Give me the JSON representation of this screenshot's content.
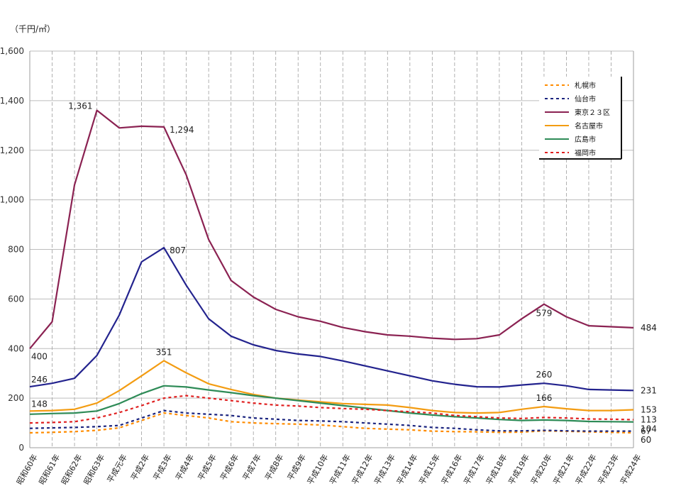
{
  "chart_data": {
    "type": "line",
    "unit_label": "（千円/㎡）",
    "ylim": [
      0,
      1600
    ],
    "yticks": [
      "0",
      "200",
      "400",
      "600",
      "800",
      "1,000",
      "1,200",
      "1,400",
      "1,600"
    ],
    "ytick_values": [
      0,
      200,
      400,
      600,
      800,
      1000,
      1200,
      1400,
      1600
    ],
    "grid": {
      "horizontal": true,
      "vertical": true,
      "vertical_style": "dashed"
    },
    "legend_position": "top-right",
    "categories": [
      "昭和60年",
      "昭和61年",
      "昭和62年",
      "昭和63年",
      "平成元年",
      "平成2年",
      "平成3年",
      "平成4年",
      "平成5年",
      "平成6年",
      "平成7年",
      "平成8年",
      "平成9年",
      "平成10年",
      "平成11年",
      "平成12年",
      "平成13年",
      "平成14年",
      "平成15年",
      "平成16年",
      "平成17年",
      "平成18年",
      "平成19年",
      "平成20年",
      "平成21年",
      "平成22年",
      "平成23年",
      "平成24年"
    ],
    "series": [
      {
        "name": "札幌市",
        "color": "#ff8c00",
        "dash": "4,4",
        "values": [
          60,
          62,
          65,
          70,
          80,
          110,
          140,
          130,
          120,
          105,
          100,
          97,
          95,
          92,
          85,
          78,
          75,
          72,
          67,
          65,
          64,
          62,
          63,
          68,
          66,
          64,
          62,
          60
        ]
      },
      {
        "name": "仙台市",
        "color": "#1a237e",
        "dash": "4,4",
        "values": [
          78,
          80,
          82,
          85,
          90,
          120,
          150,
          140,
          135,
          130,
          120,
          115,
          110,
          108,
          105,
          100,
          95,
          90,
          82,
          78,
          72,
          68,
          68,
          70,
          68,
          67,
          67,
          67
        ]
      },
      {
        "name": "東京２３区",
        "color": "#8b2252",
        "dash": "",
        "values": [
          400,
          508,
          1060,
          1361,
          1290,
          1297,
          1294,
          1100,
          840,
          675,
          608,
          558,
          528,
          510,
          485,
          468,
          455,
          450,
          442,
          437,
          440,
          455,
          520,
          579,
          528,
          492,
          488,
          484
        ]
      },
      {
        "name": "名古屋市",
        "color": "#f39c12",
        "dash": "",
        "values": [
          148,
          150,
          155,
          180,
          230,
          290,
          351,
          302,
          258,
          235,
          215,
          200,
          192,
          185,
          178,
          175,
          172,
          162,
          150,
          142,
          140,
          142,
          155,
          166,
          157,
          150,
          150,
          153
        ]
      },
      {
        "name": "広島市",
        "color": "#2e8b57",
        "dash": "",
        "values": [
          135,
          138,
          140,
          148,
          178,
          218,
          250,
          245,
          233,
          222,
          210,
          200,
          190,
          180,
          170,
          160,
          150,
          140,
          132,
          125,
          120,
          114,
          110,
          112,
          110,
          106,
          105,
          104
        ]
      },
      {
        "name": "福岡市",
        "color": "#e02020",
        "dash": "4,4",
        "values": [
          100,
          102,
          105,
          120,
          142,
          170,
          200,
          210,
          200,
          190,
          180,
          172,
          168,
          162,
          158,
          155,
          150,
          145,
          140,
          130,
          125,
          120,
          118,
          122,
          120,
          116,
          115,
          113
        ]
      },
      {
        "name": "",
        "color": "#23238e",
        "dash": "",
        "values": [
          246,
          260,
          280,
          372,
          535,
          750,
          807,
          655,
          520,
          450,
          415,
          392,
          378,
          368,
          350,
          330,
          310,
          290,
          270,
          256,
          246,
          245,
          253,
          260,
          250,
          235,
          233,
          231
        ]
      }
    ],
    "data_labels": [
      {
        "text": "1,361",
        "series": 2,
        "index": 3,
        "pos": "left"
      },
      {
        "text": "1,294",
        "series": 2,
        "index": 6,
        "pos": "right"
      },
      {
        "text": "579",
        "series": 2,
        "index": 23,
        "pos": "below"
      },
      {
        "text": "484",
        "series": 2,
        "index": 27,
        "pos": "end"
      },
      {
        "text": "807",
        "series": 6,
        "index": 6,
        "pos": "right"
      },
      {
        "text": "400",
        "series": 2,
        "index": 0,
        "pos": "below-start"
      },
      {
        "text": "246",
        "series": 6,
        "index": 0,
        "pos": "above-start"
      },
      {
        "text": "260",
        "series": 6,
        "index": 23,
        "pos": "above"
      },
      {
        "text": "231",
        "series": 6,
        "index": 27,
        "pos": "end"
      },
      {
        "text": "351",
        "series": 3,
        "index": 6,
        "pos": "above"
      },
      {
        "text": "166",
        "series": 3,
        "index": 23,
        "pos": "above"
      },
      {
        "text": "153",
        "series": 3,
        "index": 27,
        "pos": "end"
      },
      {
        "text": "148",
        "series": 3,
        "index": 0,
        "pos": "above-start"
      },
      {
        "text": "113",
        "series": 5,
        "index": 27,
        "pos": "end"
      },
      {
        "text": "104",
        "series": 4,
        "index": 27,
        "pos": "end-low"
      },
      {
        "text": "67",
        "series": 1,
        "index": 27,
        "pos": "end"
      },
      {
        "text": "60",
        "series": 0,
        "index": 27,
        "pos": "end-low"
      }
    ]
  }
}
